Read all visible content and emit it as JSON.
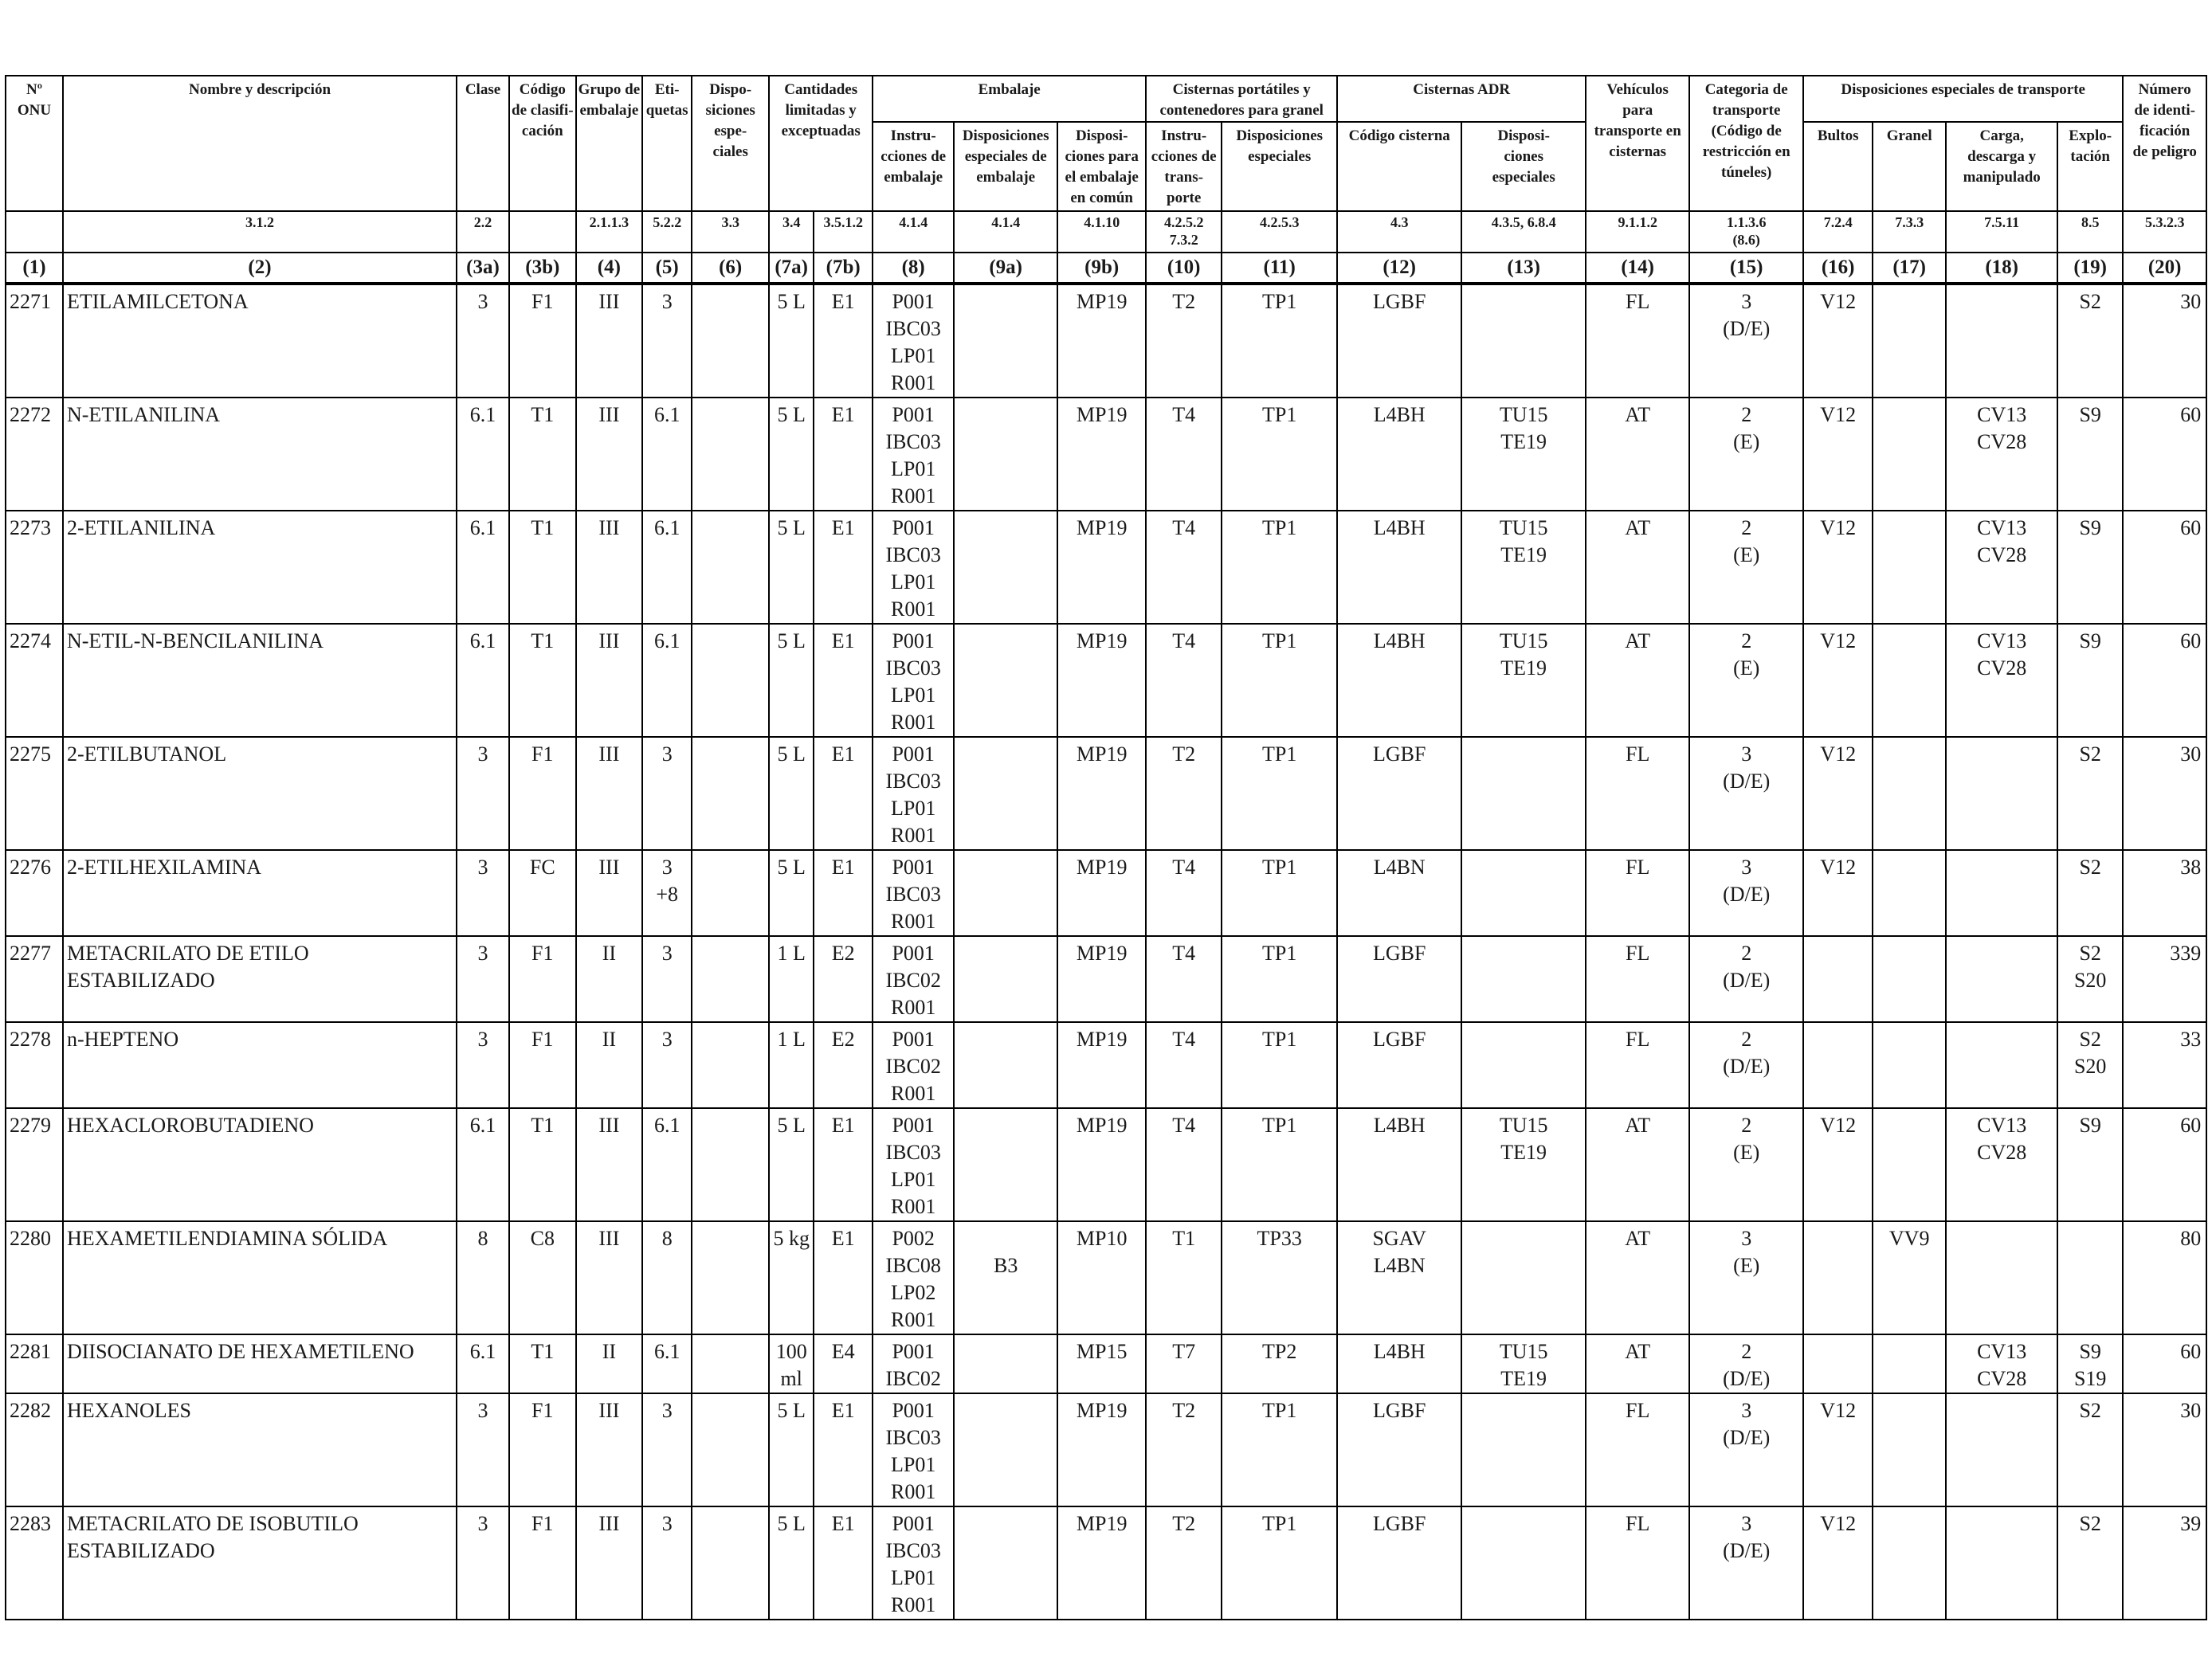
{
  "header": {
    "no_onu": [
      "Nº",
      "ONU"
    ],
    "nombre": "Nombre y descripción",
    "clase": "Clase",
    "codigo": [
      "Código",
      "de clasifi-",
      "cación"
    ],
    "grupo": [
      "Grupo de",
      "embalaje"
    ],
    "etiquetas": [
      "Eti-",
      "quetas"
    ],
    "disposiciones": [
      "Dispo-",
      "siciones",
      "espe-",
      "ciales"
    ],
    "cantidades": [
      "Cantidades",
      "limitadas y",
      "exceptuadas"
    ],
    "embalaje": "Embalaje",
    "cisternas_portatiles": [
      "Cisternas portátiles y",
      "contenedores para granel"
    ],
    "cisternas_adr": "Cisternas ADR",
    "vehiculos": [
      "Vehículos",
      "para",
      "transporte en",
      "cisternas"
    ],
    "categoria": [
      "Categoria de",
      "transporte",
      "(Código de",
      "restricción en",
      "túneles)"
    ],
    "disp_transporte": "Disposiciones especiales de transporte",
    "numero": [
      "Número",
      "de identi-",
      "ficación",
      "de peligro"
    ],
    "instrucciones_embalaje": [
      "Instru-",
      "cciones de",
      "embalaje"
    ],
    "disp_esp_embalaje": [
      "Disposiciones",
      "especiales de",
      "embalaje"
    ],
    "disp_comun": [
      "Disposi-",
      "ciones para",
      "el embalaje",
      "en común"
    ],
    "instrucciones_transporte": [
      "Instru-",
      "cciones de",
      "trans-",
      "porte"
    ],
    "disp_especiales_cp": [
      "Disposiciones",
      "especiales"
    ],
    "codigo_cisterna": "Código cisterna",
    "disp_especiales_adr": [
      "Disposi-",
      "ciones",
      "especiales"
    ],
    "bultos": "Bultos",
    "granel": "Granel",
    "carga": [
      "Carga,",
      "descarga y",
      "manipulado"
    ],
    "explotacion": [
      "Explo-",
      "tación"
    ]
  },
  "refs": [
    "",
    "3.1.2",
    "2.2",
    "",
    "2.1.1.3",
    "5.2.2",
    "3.3",
    "3.4",
    "3.5.1.2",
    "4.1.4",
    "4.1.4",
    "4.1.10",
    [
      "4.2.5.2",
      "7.3.2"
    ],
    "4.2.5.3",
    "4.3",
    "4.3.5, 6.8.4",
    "9.1.1.2",
    [
      "1.1.3.6",
      "(8.6)"
    ],
    "7.2.4",
    "7.3.3",
    "7.5.11",
    "8.5",
    "5.3.2.3"
  ],
  "col_numbers": [
    "(1)",
    "(2)",
    "(3a)",
    "(3b)",
    "(4)",
    "(5)",
    "(6)",
    "(7a)",
    "(7b)",
    "(8)",
    "(9a)",
    "(9b)",
    "(10)",
    "(11)",
    "(12)",
    "(13)",
    "(14)",
    "(15)",
    "(16)",
    "(17)",
    "(18)",
    "(19)",
    "(20)"
  ],
  "rows": [
    {
      "un": "2271",
      "name": "ETILAMILCETONA",
      "clase": "3",
      "codigo": "F1",
      "grupo": "III",
      "etiquetas": [
        "3"
      ],
      "disp": "",
      "lq": "5 L",
      "eq": "E1",
      "pi": [
        "P001",
        "IBC03",
        "LP01",
        "R001"
      ],
      "ppe": [],
      "mp": "MP19",
      "ti": "T2",
      "tp": [
        "TP1"
      ],
      "tank": [
        "LGBF"
      ],
      "tu": [],
      "veh": "FL",
      "cat": [
        "3",
        "(D/E)"
      ],
      "bultos": "V12",
      "granel": "",
      "cv": [],
      "s": [
        "S2"
      ],
      "haz": "30"
    },
    {
      "un": "2272",
      "name": "N-ETILANILINA",
      "clase": "6.1",
      "codigo": "T1",
      "grupo": "III",
      "etiquetas": [
        "6.1"
      ],
      "disp": "",
      "lq": "5 L",
      "eq": "E1",
      "pi": [
        "P001",
        "IBC03",
        "LP01",
        "R001"
      ],
      "ppe": [],
      "mp": "MP19",
      "ti": "T4",
      "tp": [
        "TP1"
      ],
      "tank": [
        "L4BH"
      ],
      "tu": [
        "TU15",
        "TE19"
      ],
      "veh": "AT",
      "cat": [
        "2",
        "(E)"
      ],
      "bultos": "V12",
      "granel": "",
      "cv": [
        "CV13",
        "CV28"
      ],
      "s": [
        "S9"
      ],
      "haz": "60"
    },
    {
      "un": "2273",
      "name": "2-ETILANILINA",
      "clase": "6.1",
      "codigo": "T1",
      "grupo": "III",
      "etiquetas": [
        "6.1"
      ],
      "disp": "",
      "lq": "5 L",
      "eq": "E1",
      "pi": [
        "P001",
        "IBC03",
        "LP01",
        "R001"
      ],
      "ppe": [],
      "mp": "MP19",
      "ti": "T4",
      "tp": [
        "TP1"
      ],
      "tank": [
        "L4BH"
      ],
      "tu": [
        "TU15",
        "TE19"
      ],
      "veh": "AT",
      "cat": [
        "2",
        "(E)"
      ],
      "bultos": "V12",
      "granel": "",
      "cv": [
        "CV13",
        "CV28"
      ],
      "s": [
        "S9"
      ],
      "haz": "60"
    },
    {
      "un": "2274",
      "name": "N-ETIL-N-BENCILANILINA",
      "clase": "6.1",
      "codigo": "T1",
      "grupo": "III",
      "etiquetas": [
        "6.1"
      ],
      "disp": "",
      "lq": "5 L",
      "eq": "E1",
      "pi": [
        "P001",
        "IBC03",
        "LP01",
        "R001"
      ],
      "ppe": [],
      "mp": "MP19",
      "ti": "T4",
      "tp": [
        "TP1"
      ],
      "tank": [
        "L4BH"
      ],
      "tu": [
        "TU15",
        "TE19"
      ],
      "veh": "AT",
      "cat": [
        "2",
        "(E)"
      ],
      "bultos": "V12",
      "granel": "",
      "cv": [
        "CV13",
        "CV28"
      ],
      "s": [
        "S9"
      ],
      "haz": "60"
    },
    {
      "un": "2275",
      "name": "2-ETILBUTANOL",
      "clase": "3",
      "codigo": "F1",
      "grupo": "III",
      "etiquetas": [
        "3"
      ],
      "disp": "",
      "lq": "5 L",
      "eq": "E1",
      "pi": [
        "P001",
        "IBC03",
        "LP01",
        "R001"
      ],
      "ppe": [],
      "mp": "MP19",
      "ti": "T2",
      "tp": [
        "TP1"
      ],
      "tank": [
        "LGBF"
      ],
      "tu": [],
      "veh": "FL",
      "cat": [
        "3",
        "(D/E)"
      ],
      "bultos": "V12",
      "granel": "",
      "cv": [],
      "s": [
        "S2"
      ],
      "haz": "30"
    },
    {
      "un": "2276",
      "name": "2-ETILHEXILAMINA",
      "clase": "3",
      "codigo": "FC",
      "grupo": "III",
      "etiquetas": [
        "3",
        "+8"
      ],
      "disp": "",
      "lq": "5 L",
      "eq": "E1",
      "pi": [
        "P001",
        "IBC03",
        "R001"
      ],
      "ppe": [],
      "mp": "MP19",
      "ti": "T4",
      "tp": [
        "TP1"
      ],
      "tank": [
        "L4BN"
      ],
      "tu": [],
      "veh": "FL",
      "cat": [
        "3",
        "(D/E)"
      ],
      "bultos": "V12",
      "granel": "",
      "cv": [],
      "s": [
        "S2"
      ],
      "haz": "38"
    },
    {
      "un": "2277",
      "name": "METACRILATO DE ETILO ESTABILIZADO",
      "clase": "3",
      "codigo": "F1",
      "grupo": "II",
      "etiquetas": [
        "3"
      ],
      "disp": "",
      "lq": "1 L",
      "eq": "E2",
      "pi": [
        "P001",
        "IBC02",
        "R001"
      ],
      "ppe": [],
      "mp": "MP19",
      "ti": "T4",
      "tp": [
        "TP1"
      ],
      "tank": [
        "LGBF"
      ],
      "tu": [],
      "veh": "FL",
      "cat": [
        "2",
        "(D/E)"
      ],
      "bultos": "",
      "granel": "",
      "cv": [],
      "s": [
        "S2",
        "S20"
      ],
      "haz": "339"
    },
    {
      "un": "2278",
      "name": "n-HEPTENO",
      "clase": "3",
      "codigo": "F1",
      "grupo": "II",
      "etiquetas": [
        "3"
      ],
      "disp": "",
      "lq": "1 L",
      "eq": "E2",
      "pi": [
        "P001",
        "IBC02",
        "R001"
      ],
      "ppe": [],
      "mp": "MP19",
      "ti": "T4",
      "tp": [
        "TP1"
      ],
      "tank": [
        "LGBF"
      ],
      "tu": [],
      "veh": "FL",
      "cat": [
        "2",
        "(D/E)"
      ],
      "bultos": "",
      "granel": "",
      "cv": [],
      "s": [
        "S2",
        "S20"
      ],
      "haz": "33"
    },
    {
      "un": "2279",
      "name": "HEXACLOROBUTADIENO",
      "clase": "6.1",
      "codigo": "T1",
      "grupo": "III",
      "etiquetas": [
        "6.1"
      ],
      "disp": "",
      "lq": "5 L",
      "eq": "E1",
      "pi": [
        "P001",
        "IBC03",
        "LP01",
        "R001"
      ],
      "ppe": [],
      "mp": "MP19",
      "ti": "T4",
      "tp": [
        "TP1"
      ],
      "tank": [
        "L4BH"
      ],
      "tu": [
        "TU15",
        "TE19"
      ],
      "veh": "AT",
      "cat": [
        "2",
        "(E)"
      ],
      "bultos": "V12",
      "granel": "",
      "cv": [
        "CV13",
        "CV28"
      ],
      "s": [
        "S9"
      ],
      "haz": "60"
    },
    {
      "un": "2280",
      "name": "HEXAMETILENDIAMINA SÓLIDA",
      "clase": "8",
      "codigo": "C8",
      "grupo": "III",
      "etiquetas": [
        "8"
      ],
      "disp": "",
      "lq": "5 kg",
      "eq": "E1",
      "pi": [
        "P002",
        "IBC08",
        "LP02",
        "R001"
      ],
      "ppe": [
        "",
        "B3"
      ],
      "mp": "MP10",
      "ti": "T1",
      "tp": [
        "TP33"
      ],
      "tank": [
        "SGAV",
        "L4BN"
      ],
      "tu": [],
      "veh": "AT",
      "cat": [
        "3",
        "(E)"
      ],
      "bultos": "",
      "granel": "VV9",
      "cv": [],
      "s": [],
      "haz": "80"
    },
    {
      "un": "2281",
      "name": "DIISOCIANATO DE HEXAMETILENO",
      "clase": "6.1",
      "codigo": "T1",
      "grupo": "II",
      "etiquetas": [
        "6.1"
      ],
      "disp": "",
      "lq": "100 ml",
      "eq": "E4",
      "pi": [
        "P001",
        "IBC02"
      ],
      "ppe": [],
      "mp": "MP15",
      "ti": "T7",
      "tp": [
        "TP2"
      ],
      "tank": [
        "L4BH"
      ],
      "tu": [
        "TU15",
        "TE19"
      ],
      "veh": "AT",
      "cat": [
        "2",
        "(D/E)"
      ],
      "bultos": "",
      "granel": "",
      "cv": [
        "CV13",
        "CV28"
      ],
      "s": [
        "S9",
        "S19"
      ],
      "haz": "60"
    },
    {
      "un": "2282",
      "name": "HEXANOLES",
      "clase": "3",
      "codigo": "F1",
      "grupo": "III",
      "etiquetas": [
        "3"
      ],
      "disp": "",
      "lq": "5 L",
      "eq": "E1",
      "pi": [
        "P001",
        "IBC03",
        "LP01",
        "R001"
      ],
      "ppe": [],
      "mp": "MP19",
      "ti": "T2",
      "tp": [
        "TP1"
      ],
      "tank": [
        "LGBF"
      ],
      "tu": [],
      "veh": "FL",
      "cat": [
        "3",
        "(D/E)"
      ],
      "bultos": "V12",
      "granel": "",
      "cv": [],
      "s": [
        "S2"
      ],
      "haz": "30"
    },
    {
      "un": "2283",
      "name": "METACRILATO DE ISOBUTILO ESTABILIZADO",
      "clase": "3",
      "codigo": "F1",
      "grupo": "III",
      "etiquetas": [
        "3"
      ],
      "disp": "",
      "lq": "5 L",
      "eq": "E1",
      "pi": [
        "P001",
        "IBC03",
        "LP01",
        "R001"
      ],
      "ppe": [],
      "mp": "MP19",
      "ti": "T2",
      "tp": [
        "TP1"
      ],
      "tank": [
        "LGBF"
      ],
      "tu": [],
      "veh": "FL",
      "cat": [
        "3",
        "(D/E)"
      ],
      "bultos": "V12",
      "granel": "",
      "cv": [],
      "s": [
        "S2"
      ],
      "haz": "39"
    }
  ]
}
